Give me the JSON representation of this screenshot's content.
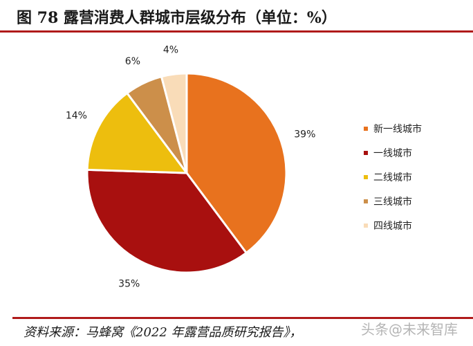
{
  "header": {
    "title": "图 78 露营消费人群城市层级分布（单位：%）"
  },
  "chart_data": {
    "type": "pie",
    "title": "",
    "start_angle_deg": 0,
    "direction": "clockwise",
    "slices": [
      {
        "name": "新一线城市",
        "value": 39,
        "label": "39%",
        "color": "#E8721E"
      },
      {
        "name": "一线城市",
        "value": 35,
        "label": "35%",
        "color": "#A8100F"
      },
      {
        "name": "二线城市",
        "value": 14,
        "label": "14%",
        "color": "#EDBE0E"
      },
      {
        "name": "三线城市",
        "value": 6,
        "label": "6%",
        "color": "#CC8F4A"
      },
      {
        "name": "四线城市",
        "value": 4,
        "label": "4%",
        "color": "#F9DCB8"
      }
    ],
    "legend": {
      "placement": "right"
    }
  },
  "footer": {
    "source": "资料来源：马蜂窝《2022 年露营品质研究报告》，",
    "watermark": "头条@未来智库"
  }
}
